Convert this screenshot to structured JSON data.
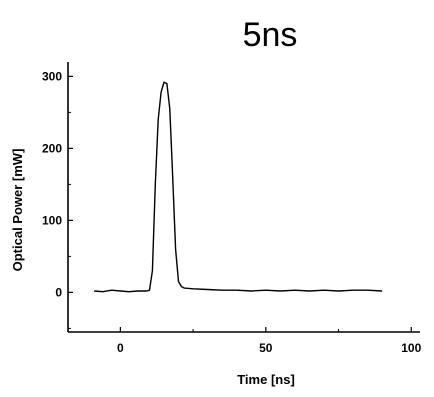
{
  "chart_data": {
    "type": "line",
    "title": "5ns",
    "xlabel": "Time [ns]",
    "ylabel": "Optical Power [mW]",
    "xlim": [
      -18,
      103
    ],
    "ylim": [
      -55,
      320
    ],
    "x_ticks": [
      0,
      50,
      100
    ],
    "y_ticks": [
      0,
      100,
      200,
      300
    ],
    "grid": false,
    "series": [
      {
        "x": [
          -9,
          -6,
          -3,
          0,
          3,
          6,
          9,
          10,
          11,
          12,
          13,
          14,
          15,
          16,
          17,
          18,
          19,
          20,
          21,
          22,
          25,
          30,
          35,
          40,
          45,
          50,
          55,
          60,
          65,
          70,
          75,
          80,
          85,
          90
        ],
        "y": [
          2,
          1,
          3,
          2,
          1,
          2,
          2,
          3,
          30,
          150,
          240,
          278,
          292,
          290,
          255,
          160,
          60,
          15,
          8,
          6,
          5,
          4,
          3,
          3,
          2,
          3,
          2,
          3,
          2,
          3,
          2,
          3,
          3,
          2
        ]
      }
    ]
  }
}
